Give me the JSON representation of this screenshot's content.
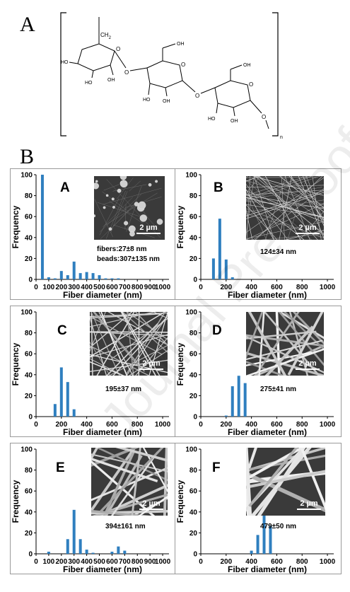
{
  "figure": {
    "section_a_letter": "A",
    "section_b_letter": "B",
    "chem_labels": {
      "ch2": "CH",
      "ch2_sub": "2",
      "oh": "OH",
      "ho": "HO",
      "o": "O",
      "n": "n"
    },
    "watermark": "Journal Pre-proof"
  },
  "colors": {
    "bar": "#2f7fbf",
    "axis": "#000000",
    "sem_dark": "#3a3a3a",
    "sem_light": "#d9d9d9"
  },
  "chart_data": [
    {
      "type": "bar",
      "panel_label": "A",
      "xlabel": "Fiber diameter (nm)",
      "ylabel": "Frequency",
      "xticks": [
        0,
        100,
        200,
        300,
        400,
        500,
        600,
        700,
        800,
        900,
        1000
      ],
      "yticks": [
        0,
        20,
        40,
        60,
        80,
        100
      ],
      "xlim": [
        0,
        1050
      ],
      "ylim": [
        0,
        100
      ],
      "x": [
        50,
        100,
        150,
        200,
        250,
        300,
        350,
        400,
        450,
        500,
        550,
        600,
        650
      ],
      "values": [
        100,
        2,
        1,
        8,
        4,
        17,
        6,
        7,
        6,
        4,
        1,
        1,
        1
      ],
      "annotations": [
        "fibers:27±8 nm",
        "beads:307±135 nm"
      ],
      "scale_label": "2 µm"
    },
    {
      "type": "bar",
      "panel_label": "B",
      "xlabel": "Fiber diameter (nm)",
      "ylabel": "Frequency",
      "xticks": [
        0,
        200,
        400,
        600,
        800,
        1000
      ],
      "yticks": [
        0,
        20,
        40,
        60,
        80,
        100
      ],
      "xlim": [
        0,
        1050
      ],
      "ylim": [
        0,
        100
      ],
      "x": [
        100,
        150,
        200,
        250
      ],
      "values": [
        20,
        58,
        19,
        2
      ],
      "annotations": [
        "124±34 nm"
      ],
      "scale_label": "2 µm"
    },
    {
      "type": "bar",
      "panel_label": "C",
      "xlabel": "Fiber diameter (nm)",
      "ylabel": "Frequency",
      "xticks": [
        0,
        200,
        400,
        600,
        800,
        1000
      ],
      "yticks": [
        0,
        20,
        40,
        60,
        80,
        100
      ],
      "xlim": [
        0,
        1050
      ],
      "ylim": [
        0,
        100
      ],
      "x": [
        150,
        200,
        250,
        300
      ],
      "values": [
        12,
        47,
        33,
        7
      ],
      "annotations": [
        "195±37 nm"
      ],
      "scale_label": "2 µm"
    },
    {
      "type": "bar",
      "panel_label": "D",
      "xlabel": "Fiber diameter (nm)",
      "ylabel": "Frequency",
      "xticks": [
        0,
        200,
        400,
        600,
        800,
        1000
      ],
      "yticks": [
        0,
        20,
        40,
        60,
        80,
        100
      ],
      "xlim": [
        0,
        1050
      ],
      "ylim": [
        0,
        100
      ],
      "x": [
        200,
        250,
        300,
        350
      ],
      "values": [
        1,
        29,
        39,
        32
      ],
      "annotations": [
        "275±41 nm"
      ],
      "scale_label": "2 µm"
    },
    {
      "type": "bar",
      "panel_label": "E",
      "xlabel": "Fiber diameter (nm)",
      "ylabel": "Frequency",
      "xticks": [
        0,
        100,
        200,
        300,
        400,
        500,
        600,
        700,
        800,
        900,
        1000
      ],
      "yticks": [
        0,
        20,
        40,
        60,
        80,
        100
      ],
      "xlim": [
        0,
        1050
      ],
      "ylim": [
        0,
        100
      ],
      "x": [
        100,
        250,
        300,
        350,
        400,
        450,
        600,
        650,
        700
      ],
      "values": [
        2,
        14,
        42,
        14,
        4,
        1,
        2,
        7,
        3
      ],
      "annotations": [
        "394±161 nm"
      ],
      "scale_label": "2 µm"
    },
    {
      "type": "bar",
      "panel_label": "F",
      "xlabel": "Fiber diameter (nm)",
      "ylabel": "Frequency",
      "xticks": [
        0,
        200,
        400,
        600,
        800,
        1000
      ],
      "yticks": [
        0,
        20,
        40,
        60,
        80,
        100
      ],
      "xlim": [
        0,
        1050
      ],
      "ylim": [
        0,
        100
      ],
      "x": [
        400,
        450,
        500,
        550
      ],
      "values": [
        3,
        18,
        47,
        27
      ],
      "annotations": [
        "479±50 nm"
      ],
      "scale_label": "2 µm"
    }
  ]
}
